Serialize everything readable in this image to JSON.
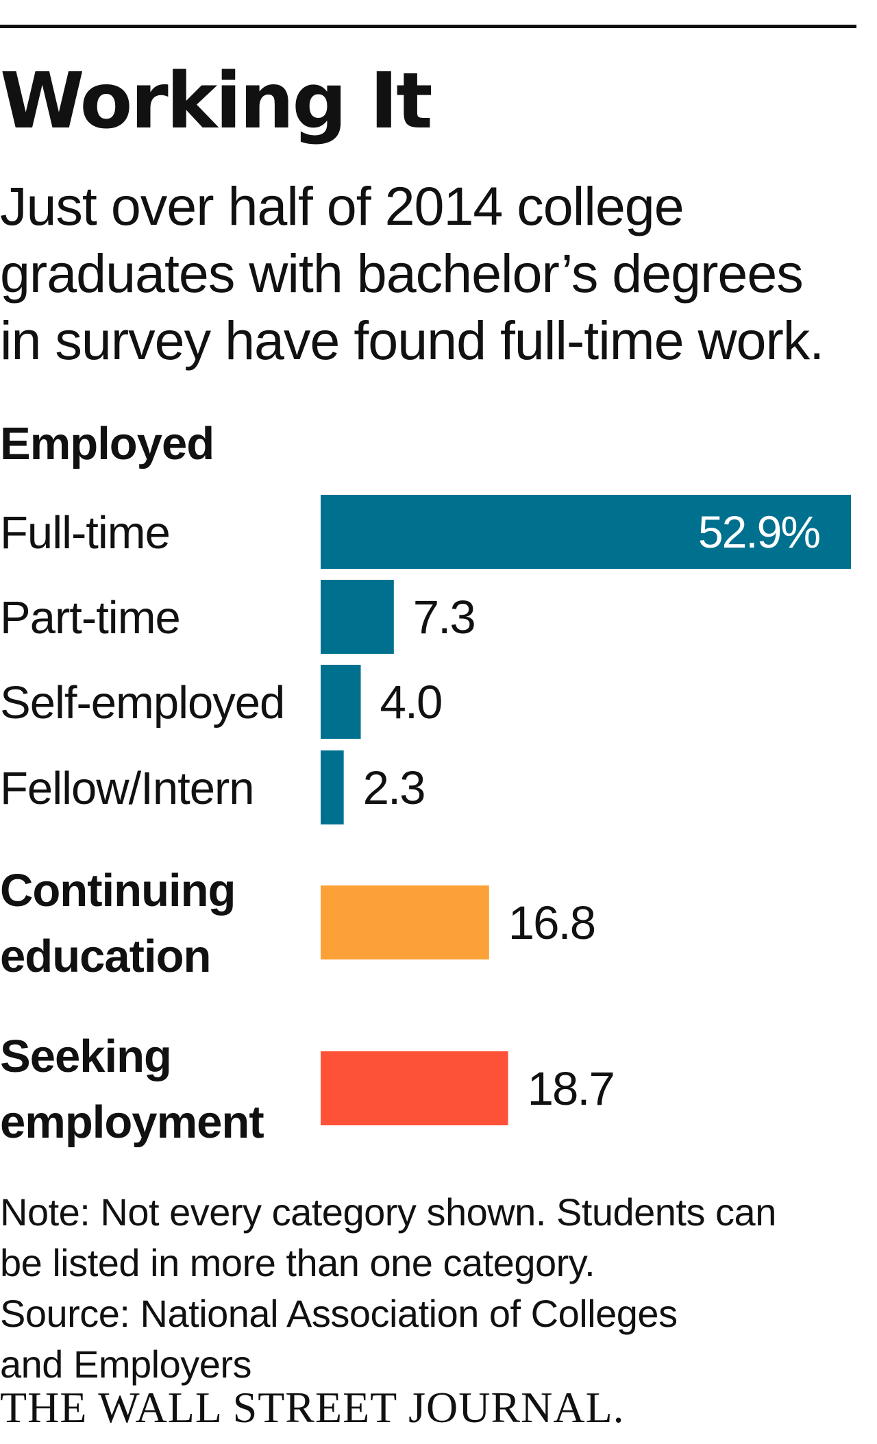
{
  "header": {
    "title": "Working It",
    "subtitle_lines": [
      "Just over half of 2014 college",
      "graduates with bachelor’s degrees",
      "in survey have found full-time work."
    ]
  },
  "chart_data": {
    "type": "bar",
    "orientation": "horizontal",
    "title": "Working It",
    "unit": "%",
    "group_heading": "Employed",
    "categories": [
      "Full-time",
      "Part-time",
      "Self-employed",
      "Fellow/Intern",
      "Continuing education",
      "Seeking employment"
    ],
    "category_label_lines": [
      [
        "Full-time"
      ],
      [
        "Part-time"
      ],
      [
        "Self-employed"
      ],
      [
        "Fellow/Intern"
      ],
      [
        "Continuing",
        "education"
      ],
      [
        "Seeking",
        "employment"
      ]
    ],
    "values": [
      52.9,
      7.3,
      4.0,
      2.3,
      16.8,
      18.7
    ],
    "value_labels": [
      "52.9%",
      "7.3",
      "4.0",
      "2.3",
      "16.8",
      "18.7"
    ],
    "groups": [
      "Employed",
      "Employed",
      "Employed",
      "Employed",
      "",
      ""
    ],
    "colors": [
      "#00708f",
      "#00708f",
      "#00708f",
      "#00708f",
      "#fba137",
      "#fd5237"
    ],
    "xlim": [
      0,
      52.9
    ],
    "grid": false,
    "legend": "none"
  },
  "footer": {
    "note_lines": [
      "Note: Not every category shown. Students can",
      "be listed in more than one category."
    ],
    "source_lines": [
      "Source: National Association of Colleges",
      "and Employers"
    ],
    "logo": "THE WALL STREET JOURNAL."
  }
}
